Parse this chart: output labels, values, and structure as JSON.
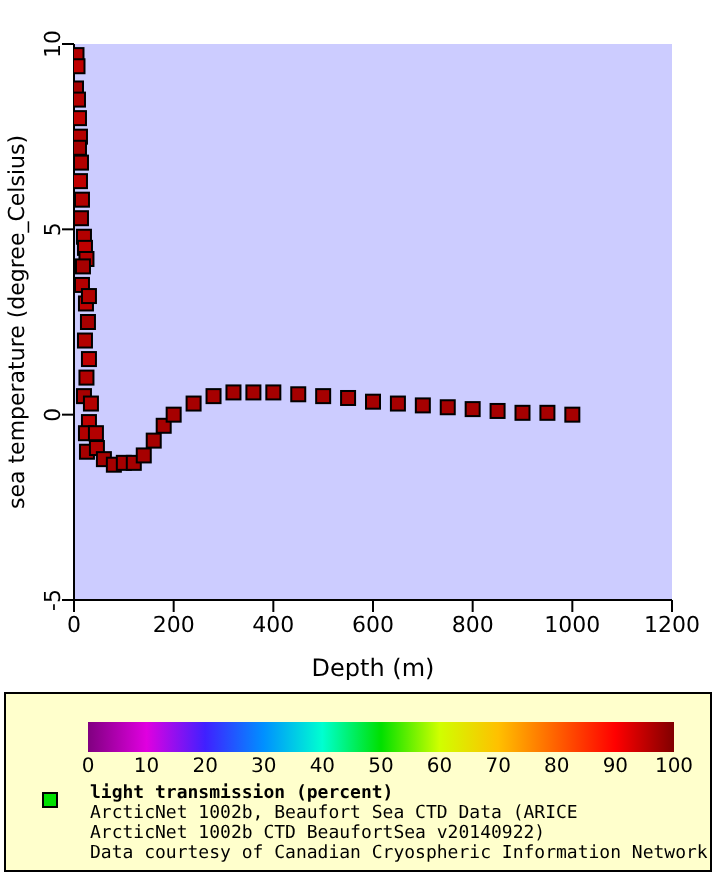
{
  "chart_data": {
    "type": "scatter",
    "xlabel": "Depth (m)",
    "ylabel": "sea temperature (degree_Celsius)",
    "clabel": "light transmission (percent)",
    "marker": "square",
    "xlim": [
      0,
      1200
    ],
    "xticks": [
      0,
      200,
      400,
      600,
      800,
      1000,
      1200
    ],
    "ylim": [
      -5,
      10
    ],
    "yticks": [
      -5,
      0,
      5,
      10
    ],
    "clim": [
      0,
      100
    ],
    "cticks": [
      0,
      10,
      20,
      30,
      40,
      50,
      60,
      70,
      80,
      90,
      100
    ],
    "x": [
      5,
      7,
      4,
      8,
      10,
      12,
      10,
      14,
      12,
      16,
      14,
      20,
      22,
      25,
      18,
      16,
      24,
      30,
      28,
      22,
      30,
      25,
      20,
      34,
      30,
      24,
      26,
      44,
      46,
      60,
      80,
      100,
      120,
      140,
      160,
      180,
      200,
      240,
      280,
      320,
      360,
      400,
      450,
      500,
      550,
      600,
      650,
      700,
      750,
      800,
      850,
      900,
      950,
      1000
    ],
    "values": [
      9.7,
      9.4,
      8.8,
      8.5,
      8.0,
      7.5,
      7.2,
      6.8,
      6.3,
      5.8,
      5.3,
      4.8,
      4.5,
      4.2,
      4.0,
      3.5,
      3.0,
      3.2,
      2.5,
      2.0,
      1.5,
      1.0,
      0.5,
      0.3,
      -0.2,
      -0.5,
      -1.0,
      -0.5,
      -0.9,
      -1.2,
      -1.35,
      -1.3,
      -1.3,
      -1.1,
      -0.7,
      -0.3,
      0,
      0.3,
      0.5,
      0.6,
      0.6,
      0.6,
      0.55,
      0.5,
      0.45,
      0.35,
      0.3,
      0.25,
      0.2,
      0.15,
      0.1,
      0.05,
      0.05,
      0
    ],
    "cvalues": [
      96,
      95,
      97,
      96,
      95,
      96,
      97,
      96,
      95,
      96,
      97,
      96,
      95,
      96,
      97,
      96,
      95,
      96,
      97,
      96,
      95,
      96,
      97,
      96,
      95,
      96,
      97,
      96,
      96,
      97,
      97,
      97,
      97,
      97,
      97,
      97,
      97,
      97,
      97,
      97,
      97,
      97,
      97,
      97,
      97,
      97,
      97,
      97,
      97,
      97,
      97,
      97,
      97,
      97
    ],
    "annotations": [
      "ArcticNet 1002b, Beaufort Sea CTD Data (ARICE",
      "ArcticNet 1002b CTD BeaufortSea v20140922)",
      "Data courtesy of Canadian Cryospheric Information Network"
    ]
  }
}
